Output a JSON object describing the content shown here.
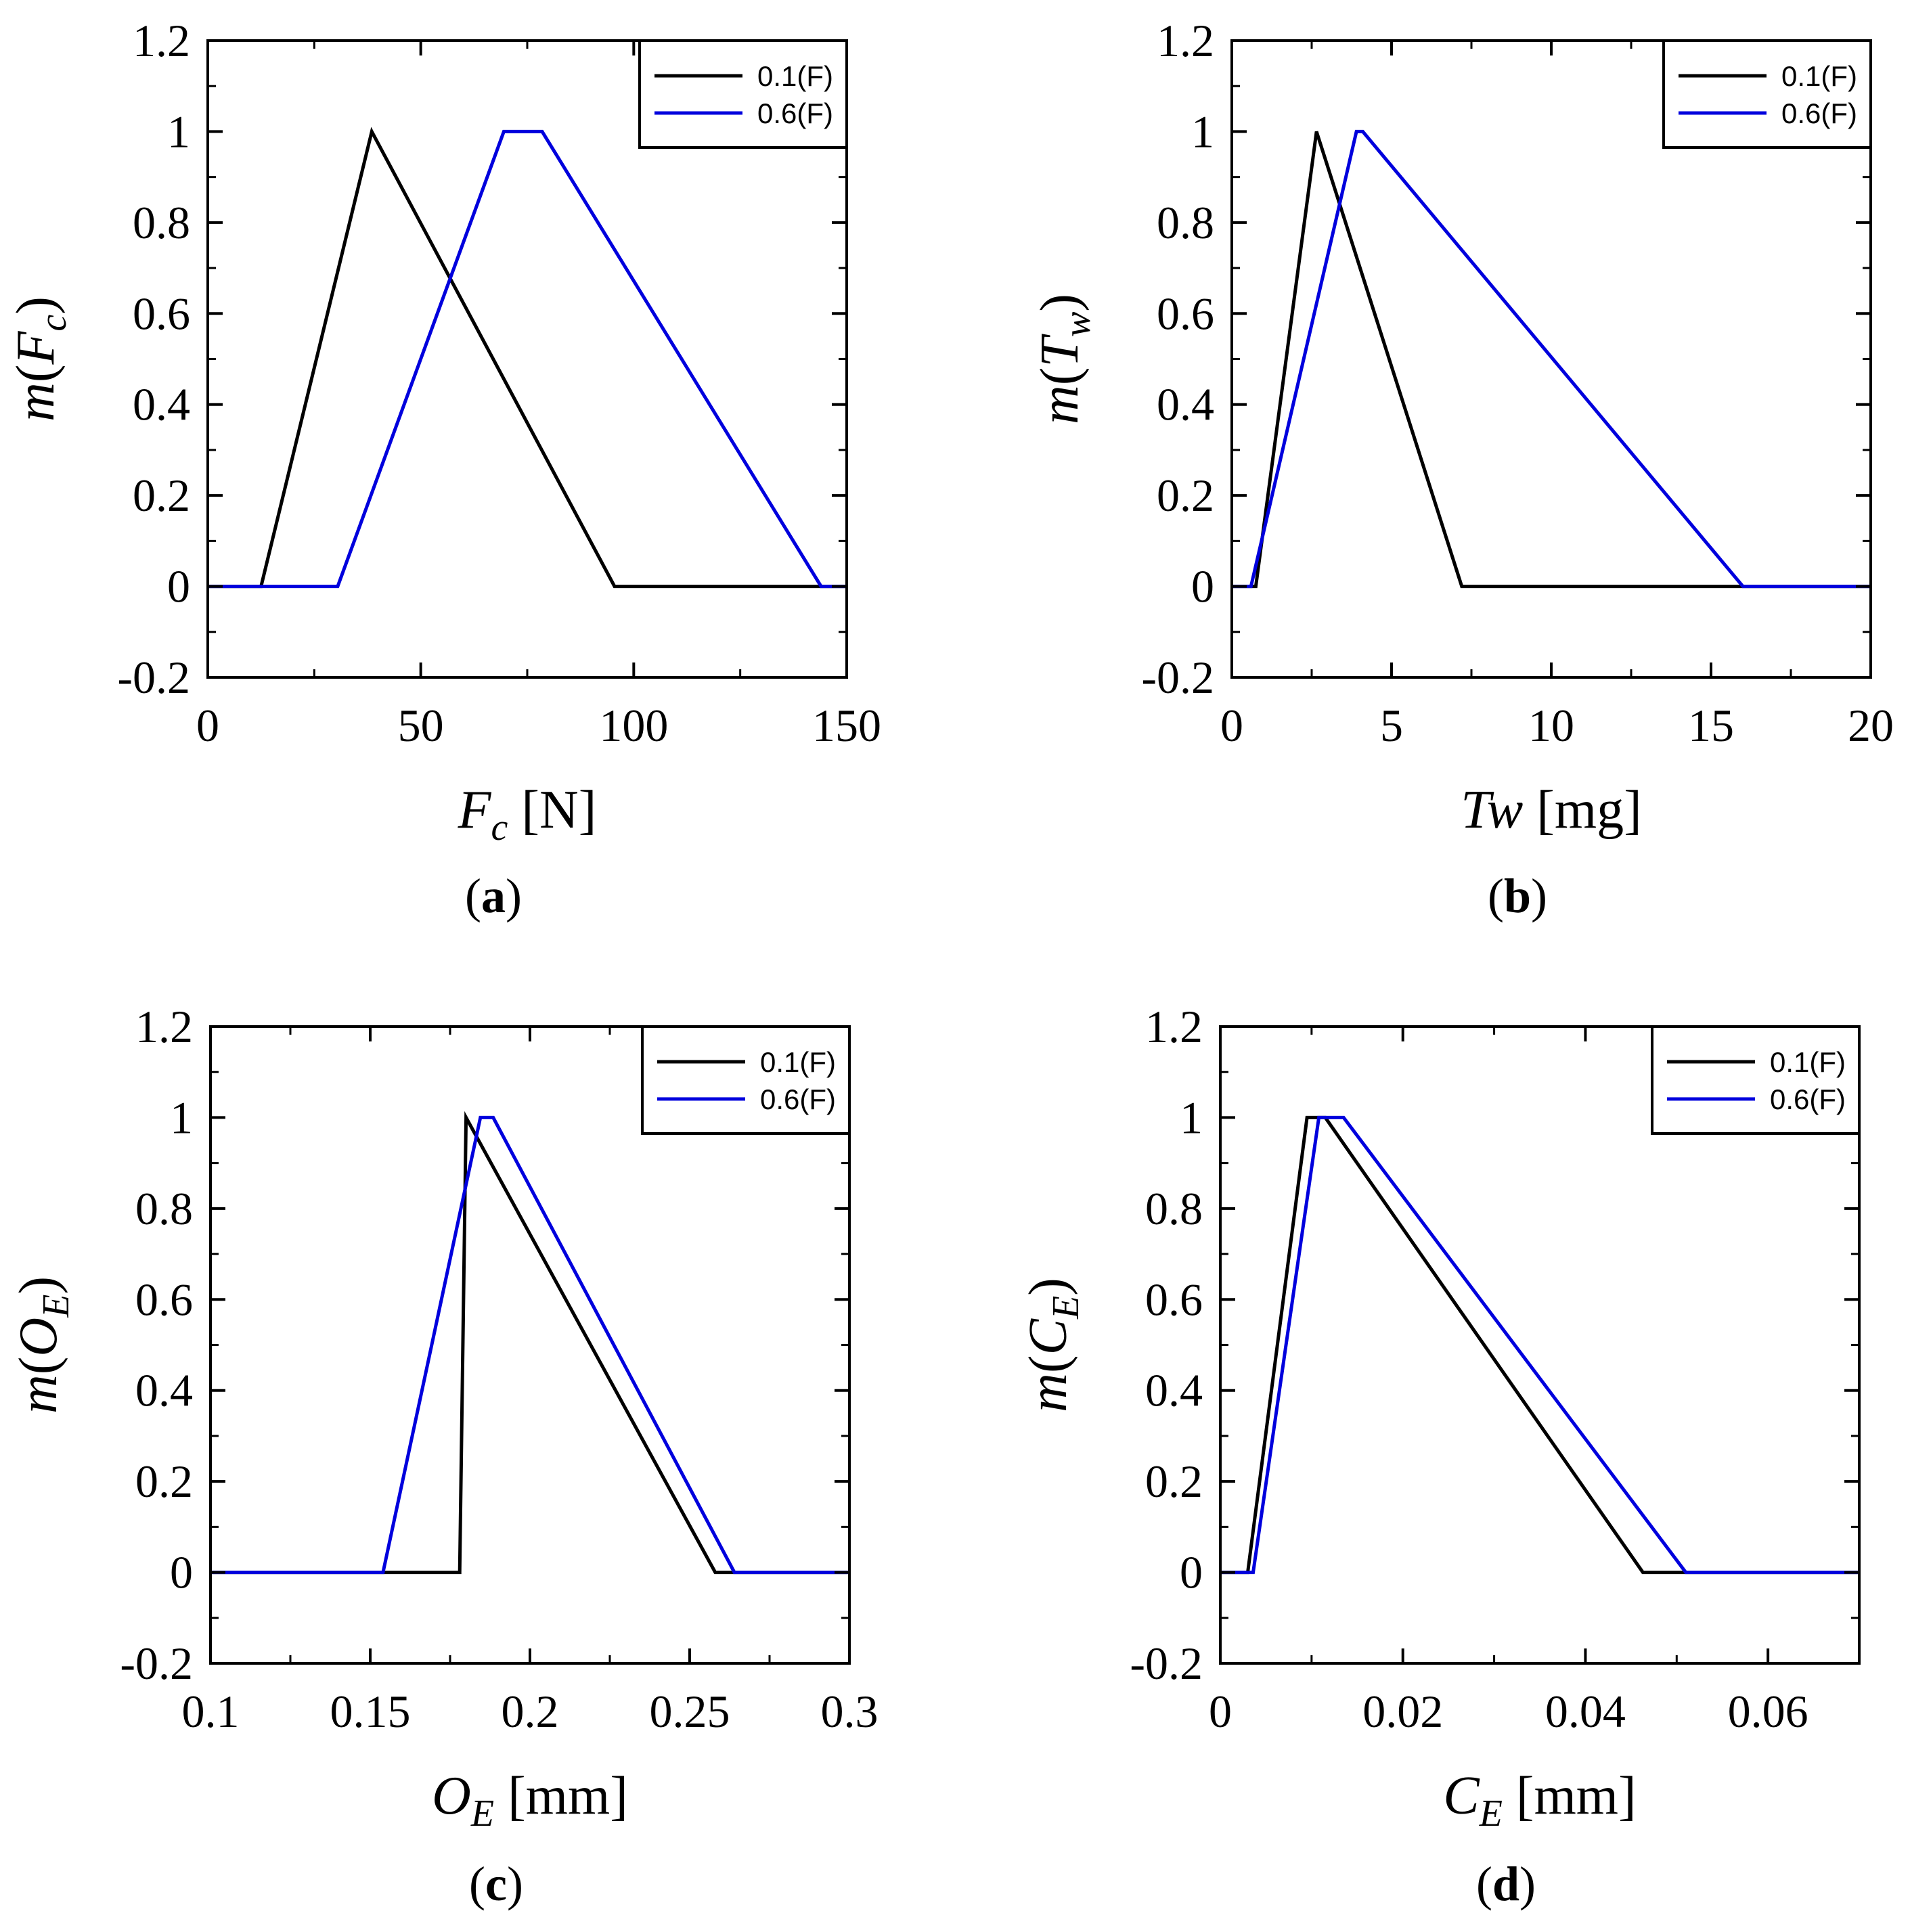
{
  "chart_data": [
    {
      "type": "line",
      "panel": "a",
      "panel_label": "a",
      "xlabel": {
        "main": "F",
        "sub": "c",
        "unit": "[N]"
      },
      "ylabel": {
        "main": "F",
        "sub": "c"
      },
      "xlim": [
        0,
        150
      ],
      "ylim": [
        -0.2,
        1.2
      ],
      "xticks": [
        "0",
        "50",
        "100",
        "150"
      ],
      "yticks": [
        "-0.2",
        "0",
        "0.2",
        "0.4",
        "0.6",
        "0.8",
        "1",
        "1.2"
      ],
      "ytick_values": [
        -0.2,
        0,
        0.2,
        0.4,
        0.6,
        0.8,
        1,
        1.2
      ],
      "xtick_values": [
        0,
        50,
        100,
        150
      ],
      "legend_position": "top-right",
      "series": [
        {
          "name": "0.1(F)",
          "color": "#000000",
          "points": [
            [
              0,
              0
            ],
            [
              12.5,
              0
            ],
            [
              38.5,
              1
            ],
            [
              95.5,
              0
            ],
            [
              150,
              0
            ]
          ]
        },
        {
          "name": "0.6(F)",
          "color": "#0000dd",
          "points": [
            [
              0,
              0
            ],
            [
              30.5,
              0
            ],
            [
              69.5,
              1
            ],
            [
              78.5,
              1
            ],
            [
              144,
              0
            ],
            [
              150,
              0
            ]
          ]
        }
      ]
    },
    {
      "type": "line",
      "panel": "b",
      "panel_label": "b",
      "xlabel": {
        "main": "Tw",
        "sub": "",
        "unit": "[mg]"
      },
      "ylabel": {
        "main": "T",
        "sub": "w"
      },
      "xlim": [
        0,
        20
      ],
      "ylim": [
        -0.2,
        1.2
      ],
      "xticks": [
        "0",
        "5",
        "10",
        "15",
        "20"
      ],
      "yticks": [
        "-0.2",
        "0",
        "0.2",
        "0.4",
        "0.6",
        "0.8",
        "1",
        "1.2"
      ],
      "ytick_values": [
        -0.2,
        0,
        0.2,
        0.4,
        0.6,
        0.8,
        1,
        1.2
      ],
      "xtick_values": [
        0,
        5,
        10,
        15,
        20
      ],
      "legend_position": "top-right",
      "series": [
        {
          "name": "0.1(F)",
          "color": "#000000",
          "points": [
            [
              0,
              0
            ],
            [
              0.75,
              0
            ],
            [
              2.65,
              1
            ],
            [
              7.2,
              0
            ],
            [
              20,
              0
            ]
          ]
        },
        {
          "name": "0.6(F)",
          "color": "#0000dd",
          "points": [
            [
              0,
              0
            ],
            [
              0.6,
              0
            ],
            [
              3.9,
              1
            ],
            [
              4.1,
              1
            ],
            [
              16,
              0
            ],
            [
              20,
              0
            ]
          ]
        }
      ]
    },
    {
      "type": "line",
      "panel": "c",
      "panel_label": "c",
      "xlabel": {
        "main": "O",
        "sub": "E",
        "unit": "[mm]"
      },
      "ylabel": {
        "main": "O",
        "sub": "E"
      },
      "xlim": [
        0.1,
        0.3
      ],
      "ylim": [
        -0.2,
        1.2
      ],
      "xticks": [
        "0.1",
        "0.15",
        "0.2",
        "0.25",
        "0.3"
      ],
      "yticks": [
        "-0.2",
        "0",
        "0.2",
        "0.4",
        "0.6",
        "0.8",
        "1",
        "1.2"
      ],
      "ytick_values": [
        -0.2,
        0,
        0.2,
        0.4,
        0.6,
        0.8,
        1,
        1.2
      ],
      "xtick_values": [
        0.1,
        0.15,
        0.2,
        0.25,
        0.3
      ],
      "legend_position": "top-right",
      "series": [
        {
          "name": "0.1(F)",
          "color": "#000000",
          "points": [
            [
              0.1,
              0
            ],
            [
              0.178,
              0
            ],
            [
              0.18,
              1
            ],
            [
              0.258,
              0
            ],
            [
              0.3,
              0
            ]
          ]
        },
        {
          "name": "0.6(F)",
          "color": "#0000dd",
          "points": [
            [
              0.1,
              0
            ],
            [
              0.154,
              0
            ],
            [
              0.1845,
              1
            ],
            [
              0.1885,
              1
            ],
            [
              0.264,
              0
            ],
            [
              0.3,
              0
            ]
          ]
        }
      ]
    },
    {
      "type": "line",
      "panel": "d",
      "panel_label": "d",
      "xlabel": {
        "main": "C",
        "sub": "E",
        "unit": "[mm]"
      },
      "ylabel": {
        "main": "C",
        "sub": "E"
      },
      "xlim": [
        0,
        0.07
      ],
      "ylim": [
        -0.2,
        1.2
      ],
      "xticks": [
        "0",
        "0.02",
        "0.04",
        "0.06"
      ],
      "yticks": [
        "-0.2",
        "0",
        "0.2",
        "0.4",
        "0.6",
        "0.8",
        "1",
        "1.2"
      ],
      "ytick_values": [
        -0.2,
        0,
        0.2,
        0.4,
        0.6,
        0.8,
        1,
        1.2
      ],
      "xtick_values": [
        0,
        0.02,
        0.04,
        0.06
      ],
      "legend_position": "top-right",
      "series": [
        {
          "name": "0.1(F)",
          "color": "#000000",
          "points": [
            [
              0,
              0
            ],
            [
              0.003,
              0
            ],
            [
              0.0095,
              1
            ],
            [
              0.0115,
              1
            ],
            [
              0.0463,
              0
            ],
            [
              0.07,
              0
            ]
          ]
        },
        {
          "name": "0.6(F)",
          "color": "#0000dd",
          "points": [
            [
              0,
              0
            ],
            [
              0.0036,
              0
            ],
            [
              0.0108,
              1
            ],
            [
              0.0135,
              1
            ],
            [
              0.051,
              0
            ],
            [
              0.07,
              0
            ]
          ]
        }
      ]
    }
  ],
  "ylabel_prefix": "m(",
  "ylabel_suffix": ")"
}
